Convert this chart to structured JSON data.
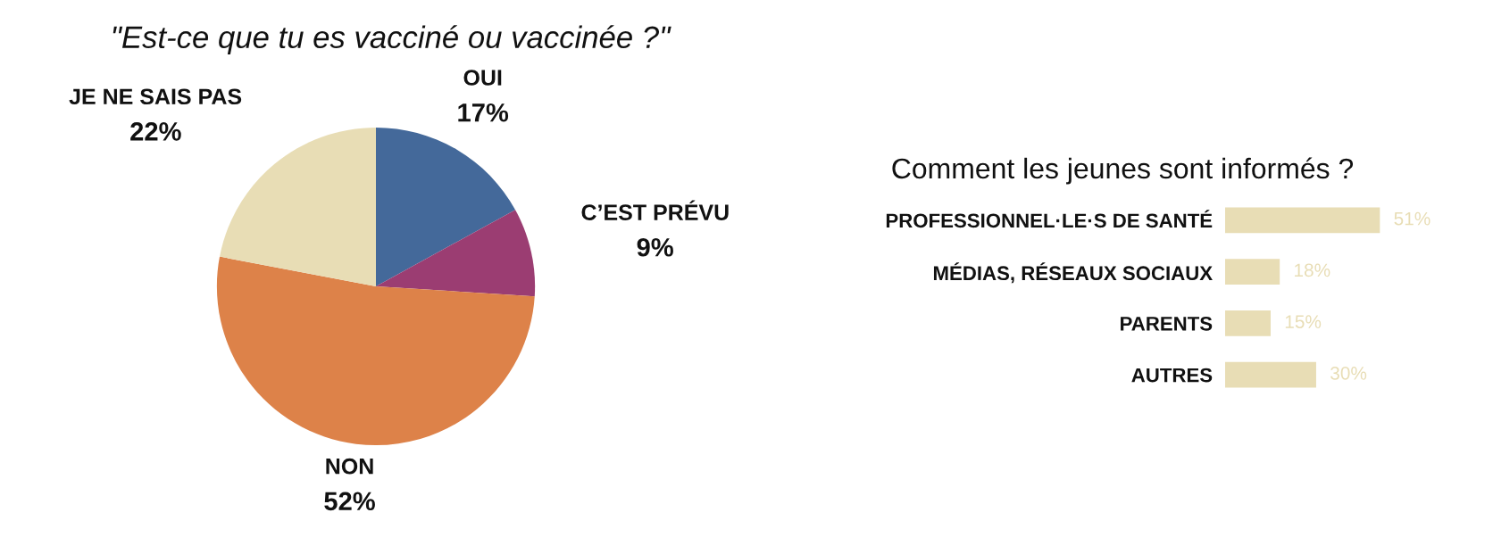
{
  "chart_data": [
    {
      "type": "pie",
      "title": "\"Est-ce que tu es vacciné ou vaccinée ?\"",
      "categories": [
        "OUI",
        "C’EST PRÉVU",
        "NON",
        "JE NE SAIS PAS"
      ],
      "values": [
        17,
        9,
        52,
        22
      ],
      "value_labels": [
        "17%",
        "9%",
        "52%",
        "22%"
      ],
      "colors": [
        "#44699a",
        "#9b3d72",
        "#dd8249",
        "#e8ddb5"
      ]
    },
    {
      "type": "bar",
      "orientation": "horizontal",
      "title": "Comment les jeunes sont informés ?",
      "categories": [
        "PROFESSIONNEL·LE·S DE SANTÉ",
        "MÉDIAS, RÉSEAUX SOCIAUX",
        "PARENTS",
        "AUTRES"
      ],
      "values": [
        51,
        18,
        15,
        30
      ],
      "value_labels": [
        "51%",
        "18%",
        "15%",
        "30%"
      ],
      "color": "#e8ddb5",
      "tick_labels": "y"
    }
  ]
}
